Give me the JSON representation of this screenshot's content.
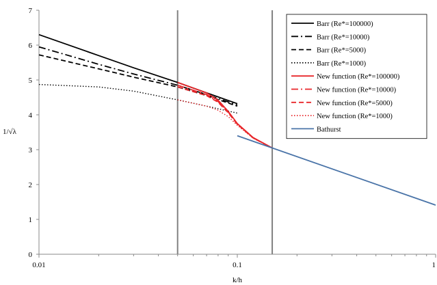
{
  "chart_data": {
    "type": "line",
    "xlabel": "k/h",
    "ylabel": "1/√λ",
    "x_scale": "log",
    "xlim": [
      0.01,
      1
    ],
    "ylim": [
      0,
      7
    ],
    "x_ticks": [
      {
        "value": 0.01,
        "label": "0.01"
      },
      {
        "value": 0.1,
        "label": "0.1"
      },
      {
        "value": 1,
        "label": "1"
      }
    ],
    "y_ticks": [
      {
        "value": 0,
        "label": "0"
      },
      {
        "value": 1,
        "label": "1"
      },
      {
        "value": 2,
        "label": "2"
      },
      {
        "value": 3,
        "label": "3"
      },
      {
        "value": 4,
        "label": "4"
      },
      {
        "value": 5,
        "label": "5"
      },
      {
        "value": 6,
        "label": "6"
      },
      {
        "value": 7,
        "label": "7"
      }
    ],
    "vertical_reference_lines": [
      0.05,
      0.15
    ],
    "legend_position": "top-right",
    "grid": false,
    "series": [
      {
        "name": "Barr (Re*=100000)",
        "color": "#000000",
        "dash": "solid",
        "x": [
          0.01,
          0.02,
          0.03,
          0.05,
          0.07,
          0.1
        ],
        "y": [
          6.3,
          5.7,
          5.35,
          4.93,
          4.63,
          4.32
        ]
      },
      {
        "name": "Barr (Re*=10000)",
        "color": "#000000",
        "dash": "dashdot",
        "x": [
          0.01,
          0.02,
          0.03,
          0.05,
          0.07,
          0.1
        ],
        "y": [
          5.95,
          5.45,
          5.17,
          4.85,
          4.58,
          4.28
        ]
      },
      {
        "name": "Barr (Re*=5000)",
        "color": "#000000",
        "dash": "dash",
        "x": [
          0.01,
          0.02,
          0.03,
          0.05,
          0.07,
          0.1
        ],
        "y": [
          5.72,
          5.32,
          5.08,
          4.8,
          4.55,
          4.25
        ]
      },
      {
        "name": "Barr (Re*=1000)",
        "color": "#000000",
        "dash": "dot",
        "x": [
          0.01,
          0.02,
          0.03,
          0.05,
          0.07,
          0.1
        ],
        "y": [
          4.87,
          4.8,
          4.68,
          4.43,
          4.25,
          4.05
        ]
      },
      {
        "name": "New function (Re*=100000)",
        "color": "#e8262a",
        "dash": "solid",
        "x": [
          0.05,
          0.07,
          0.08,
          0.09,
          0.1,
          0.12,
          0.15
        ],
        "y": [
          4.93,
          4.63,
          4.42,
          4.1,
          3.75,
          3.35,
          3.05
        ]
      },
      {
        "name": "New function (Re*=10000)",
        "color": "#e8262a",
        "dash": "dashdot",
        "x": [
          0.05,
          0.07,
          0.08,
          0.09,
          0.1,
          0.12,
          0.15
        ],
        "y": [
          4.85,
          4.58,
          4.38,
          4.08,
          3.74,
          3.34,
          3.05
        ]
      },
      {
        "name": "New function (Re*=5000)",
        "color": "#e8262a",
        "dash": "dash",
        "x": [
          0.05,
          0.07,
          0.08,
          0.09,
          0.1,
          0.12,
          0.15
        ],
        "y": [
          4.8,
          4.55,
          4.36,
          4.06,
          3.73,
          3.34,
          3.05
        ]
      },
      {
        "name": "New function (Re*=1000)",
        "color": "#e8262a",
        "dash": "dot",
        "x": [
          0.05,
          0.07,
          0.08,
          0.09,
          0.1,
          0.12,
          0.15
        ],
        "y": [
          4.43,
          4.25,
          4.13,
          3.95,
          3.7,
          3.33,
          3.05
        ]
      },
      {
        "name": "Bathurst",
        "color": "#4a74a8",
        "dash": "solid",
        "x": [
          0.1,
          0.15,
          1
        ],
        "y": [
          3.4,
          3.05,
          1.41
        ]
      }
    ]
  }
}
